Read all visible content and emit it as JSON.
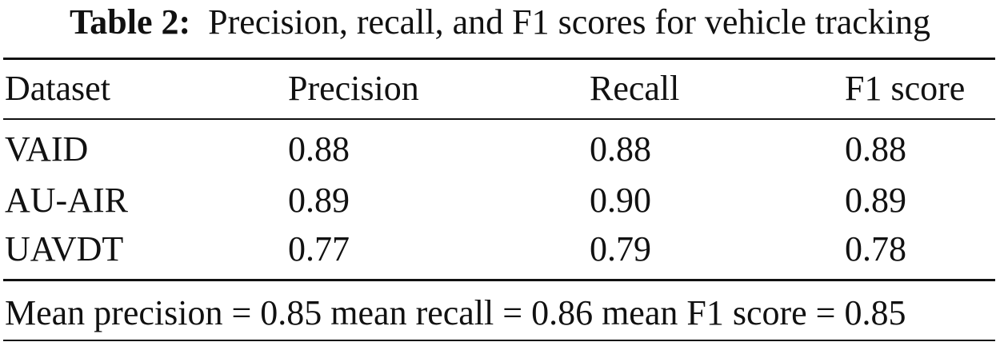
{
  "caption": {
    "label": "Table 2:",
    "text": "Precision, recall, and F1 scores for vehicle tracking"
  },
  "table": {
    "headers": [
      "Dataset",
      "Precision",
      "Recall",
      "F1 score"
    ],
    "rows": [
      [
        "VAID",
        "0.88",
        "0.88",
        "0.88"
      ],
      [
        "AU-AIR",
        "0.89",
        "0.90",
        "0.89"
      ],
      [
        "UAVDT",
        "0.77",
        "0.79",
        "0.78"
      ]
    ],
    "footnote": "Mean precision = 0.85 mean recall = 0.86 mean F1 score = 0.85"
  }
}
